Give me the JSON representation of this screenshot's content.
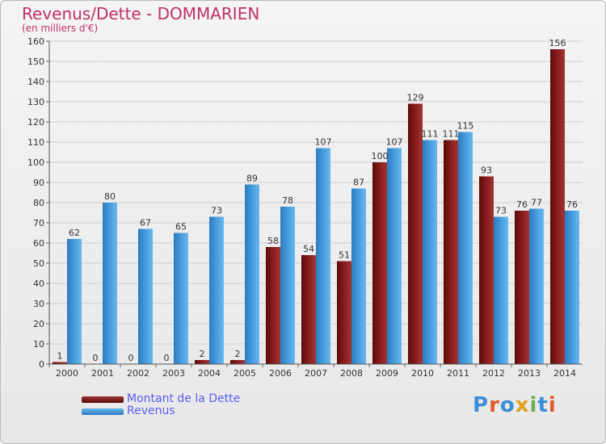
{
  "title": "Revenus/Dette - DOMMARIEN",
  "subtitle": "(en milliers d'€)",
  "logo_text": "Proxiti",
  "colors": {
    "title": "#c0306a",
    "dette": "#8b1f1f",
    "revenus": "#4a9fe0",
    "legend_text": "#5a5ef0",
    "logo_letters": [
      "#3c8ed8",
      "#e05a2a",
      "#3c8ed8",
      "#e0a020",
      "#6ab04c",
      "#3c8ed8",
      "#e05a2a"
    ]
  },
  "chart_data": {
    "type": "bar",
    "categories": [
      "2000",
      "2001",
      "2002",
      "2003",
      "2004",
      "2005",
      "2006",
      "2007",
      "2008",
      "2009",
      "2010",
      "2011",
      "2012",
      "2013",
      "2014"
    ],
    "series": [
      {
        "name": "Montant de la Dette",
        "values": [
          1,
          0,
          0,
          0,
          2,
          2,
          58,
          54,
          51,
          100,
          129,
          111,
          93,
          76,
          156
        ]
      },
      {
        "name": "Revenus",
        "values": [
          62,
          80,
          67,
          65,
          73,
          89,
          78,
          107,
          87,
          107,
          111,
          115,
          73,
          77,
          76
        ]
      }
    ],
    "ylim": [
      0,
      160
    ],
    "yticks": [
      0,
      10,
      20,
      30,
      40,
      50,
      60,
      70,
      80,
      90,
      100,
      110,
      120,
      130,
      140,
      150,
      160
    ],
    "grid": true,
    "legend": "bottom-left"
  }
}
